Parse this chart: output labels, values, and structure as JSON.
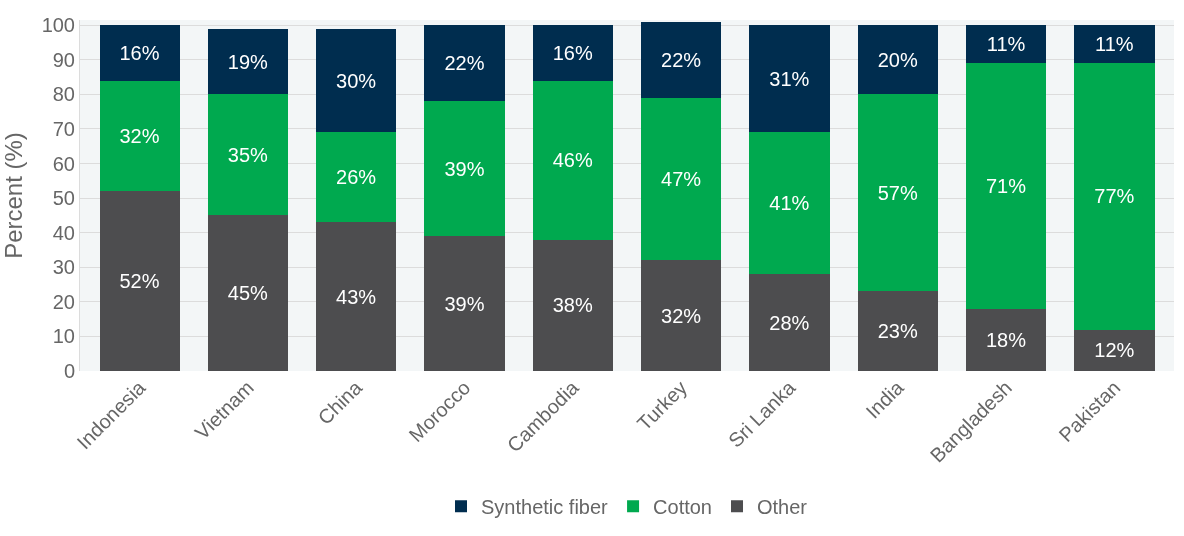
{
  "chart_data": {
    "type": "bar",
    "stacked": true,
    "ylabel": "Percent (%)",
    "categories": [
      "Indonesia",
      "Vietnam",
      "China",
      "Morocco",
      "Cambodia",
      "Turkey",
      "Sri Lanka",
      "India",
      "Bangladesh",
      "Pakistan"
    ],
    "series": [
      {
        "name": "Other",
        "color": "#4d4d4f",
        "values": [
          52,
          45,
          43,
          39,
          38,
          32,
          28,
          23,
          18,
          12
        ],
        "value_labels": [
          "52%",
          "45%",
          "43%",
          "39%",
          "38%",
          "32%",
          "28%",
          "23%",
          "18%",
          "12%"
        ]
      },
      {
        "name": "Cotton",
        "color": "#00a94f",
        "values": [
          32,
          35,
          26,
          39,
          46,
          47,
          41,
          57,
          71,
          77
        ],
        "value_labels": [
          "32%",
          "35%",
          "26%",
          "39%",
          "46%",
          "47%",
          "41%",
          "57%",
          "71%",
          "77%"
        ]
      },
      {
        "name": "Synthetic fiber",
        "color": "#002d4f",
        "values": [
          16,
          19,
          30,
          22,
          16,
          22,
          31,
          20,
          11,
          11
        ],
        "value_labels": [
          "16%",
          "19%",
          "30%",
          "22%",
          "16%",
          "22%",
          "31%",
          "20%",
          "11%",
          "11%"
        ]
      }
    ],
    "ylim": [
      0,
      101.5
    ],
    "yticks": [
      0,
      10,
      20,
      30,
      40,
      50,
      60,
      70,
      80,
      90,
      100
    ],
    "grid": "y",
    "legend": "bottom"
  }
}
